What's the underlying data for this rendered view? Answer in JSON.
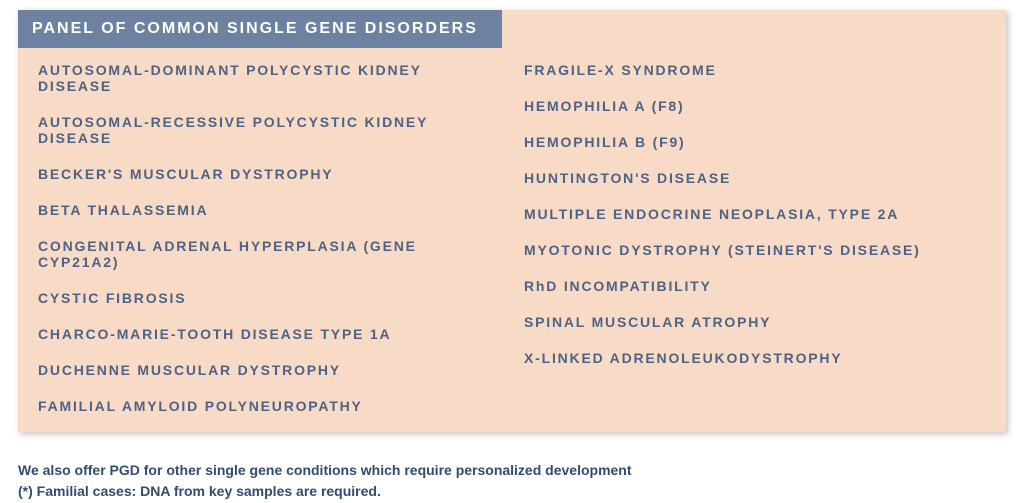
{
  "panel": {
    "title": "PANEL OF COMMON SINGLE GENE DISORDERS",
    "colors": {
      "header_bg": "#6d81a0",
      "header_text": "#ffffff",
      "body_bg": "#f8dbc7",
      "item_text": "#4f6283",
      "footer_text": "#324b6e"
    },
    "left_column": [
      "AUTOSOMAL-DOMINANT POLYCYSTIC KIDNEY DISEASE",
      "AUTOSOMAL-RECESSIVE POLYCYSTIC KIDNEY DISEASE",
      "BECKER'S MUSCULAR DYSTROPHY",
      "BETA THALASSEMIA",
      "CONGENITAL ADRENAL HYPERPLASIA (GENE CYP21A2)",
      "CYSTIC FIBROSIS",
      "CHARCO-MARIE-TOOTH DISEASE TYPE 1A",
      "DUCHENNE MUSCULAR DYSTROPHY",
      "FAMILIAL AMYLOID POLYNEUROPATHY"
    ],
    "right_column": [
      "FRAGILE-X SYNDROME",
      "HEMOPHILIA A (F8)",
      "HEMOPHILIA B (F9)",
      "HUNTINGTON'S DISEASE",
      "MULTIPLE ENDOCRINE NEOPLASIA, TYPE 2A",
      "MYOTONIC DYSTROPHY (STEINERT'S DISEASE)",
      "RhD INCOMPATIBILITY",
      "SPINAL MUSCULAR ATROPHY",
      "X-LINKED ADRENOLEUKODYSTROPHY"
    ]
  },
  "footer": {
    "line1": "We also offer PGD for other single gene conditions which require personalized development",
    "line2": "(*) Familial cases: DNA from key samples are required."
  }
}
